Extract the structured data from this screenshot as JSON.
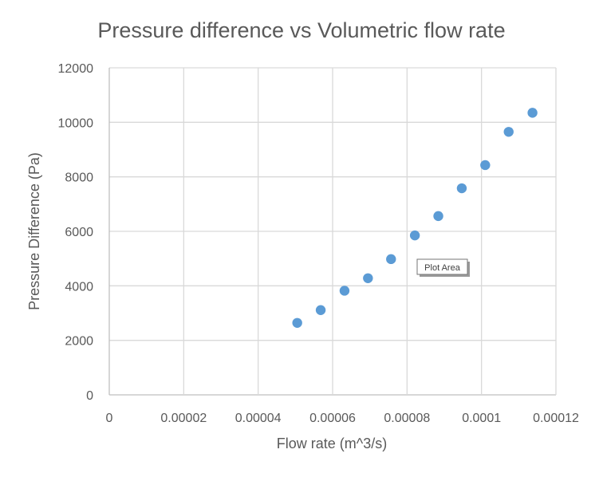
{
  "colors": {
    "series": "#5b9bd5",
    "gridline": "#d9d9d9",
    "text": "#595959",
    "background": "#ffffff"
  },
  "tooltip": {
    "label": "Plot Area"
  },
  "chart_data": {
    "type": "scatter",
    "title": "Pressure difference vs Volumetric flow rate",
    "xlabel": "Flow rate (m^3/s)",
    "ylabel": "Pressure Difference (Pa)",
    "xlim": [
      0,
      0.00012
    ],
    "ylim": [
      0,
      12000
    ],
    "xticks": [
      0,
      2e-05,
      4e-05,
      6e-05,
      8e-05,
      0.0001,
      0.00012
    ],
    "xtick_labels": [
      "0",
      "0.00002",
      "0.00004",
      "0.00006",
      "0.00008",
      "0.0001",
      "0.00012"
    ],
    "yticks": [
      0,
      2000,
      4000,
      6000,
      8000,
      10000,
      12000
    ],
    "ytick_labels": [
      "0",
      "2000",
      "4000",
      "6000",
      "8000",
      "10000",
      "12000"
    ],
    "grid": true,
    "legend": "none",
    "series": [
      {
        "x": [
          5.05e-05,
          5.68e-05,
          6.32e-05,
          6.95e-05,
          7.57e-05,
          8.21e-05,
          8.84e-05,
          9.47e-05,
          0.000101,
          0.0001073,
          0.0001137
        ],
        "y": [
          2640,
          3110,
          3820,
          4280,
          4980,
          5850,
          6560,
          7580,
          8430,
          9650,
          10350
        ]
      }
    ]
  }
}
